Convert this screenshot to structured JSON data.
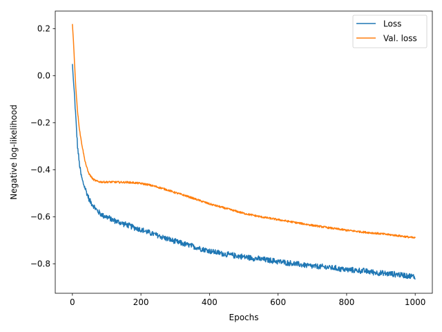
{
  "chart_data": {
    "type": "line",
    "xlabel": "Epochs",
    "ylabel": "Negative log-likelihood",
    "xlim": [
      -50,
      1050
    ],
    "ylim": [
      -0.925,
      0.275
    ],
    "xticks": [
      0,
      200,
      400,
      600,
      800,
      1000
    ],
    "yticks": [
      0.2,
      0.0,
      -0.2,
      -0.4,
      -0.6,
      -0.8
    ],
    "xtick_labels": [
      "0",
      "200",
      "400",
      "600",
      "800",
      "1000"
    ],
    "ytick_labels": [
      "0.2",
      "0.0",
      "−0.2",
      "−0.4",
      "−0.6",
      "−0.8"
    ],
    "grid": false,
    "legend_position": "top-right",
    "series": [
      {
        "name": "Loss",
        "color": "#1f77b4",
        "x": [
          0,
          3,
          6,
          10,
          15,
          20,
          25,
          30,
          35,
          40,
          50,
          60,
          70,
          80,
          90,
          100,
          120,
          140,
          160,
          180,
          200,
          230,
          260,
          300,
          350,
          400,
          450,
          500,
          550,
          600,
          650,
          700,
          750,
          800,
          850,
          900,
          950,
          1000
        ],
        "values": [
          0.05,
          -0.02,
          -0.08,
          -0.18,
          -0.3,
          -0.37,
          -0.42,
          -0.45,
          -0.47,
          -0.49,
          -0.53,
          -0.55,
          -0.57,
          -0.585,
          -0.595,
          -0.6,
          -0.615,
          -0.625,
          -0.635,
          -0.645,
          -0.655,
          -0.67,
          -0.685,
          -0.705,
          -0.725,
          -0.745,
          -0.76,
          -0.77,
          -0.78,
          -0.79,
          -0.8,
          -0.81,
          -0.815,
          -0.825,
          -0.83,
          -0.84,
          -0.845,
          -0.855
        ]
      },
      {
        "name": "Val. loss",
        "color": "#ff7f0e",
        "x": [
          0,
          3,
          6,
          10,
          15,
          20,
          25,
          30,
          35,
          40,
          45,
          50,
          60,
          70,
          80,
          90,
          100,
          120,
          140,
          160,
          180,
          200,
          220,
          240,
          260,
          280,
          300,
          330,
          360,
          400,
          450,
          500,
          550,
          600,
          650,
          700,
          750,
          800,
          850,
          900,
          950,
          1000
        ],
        "values": [
          0.22,
          0.15,
          0.06,
          -0.05,
          -0.15,
          -0.22,
          -0.27,
          -0.31,
          -0.35,
          -0.38,
          -0.405,
          -0.42,
          -0.44,
          -0.448,
          -0.451,
          -0.452,
          -0.452,
          -0.452,
          -0.453,
          -0.453,
          -0.455,
          -0.458,
          -0.463,
          -0.47,
          -0.478,
          -0.487,
          -0.497,
          -0.51,
          -0.525,
          -0.545,
          -0.565,
          -0.585,
          -0.6,
          -0.612,
          -0.624,
          -0.636,
          -0.647,
          -0.657,
          -0.665,
          -0.672,
          -0.68,
          -0.69
        ]
      }
    ]
  }
}
